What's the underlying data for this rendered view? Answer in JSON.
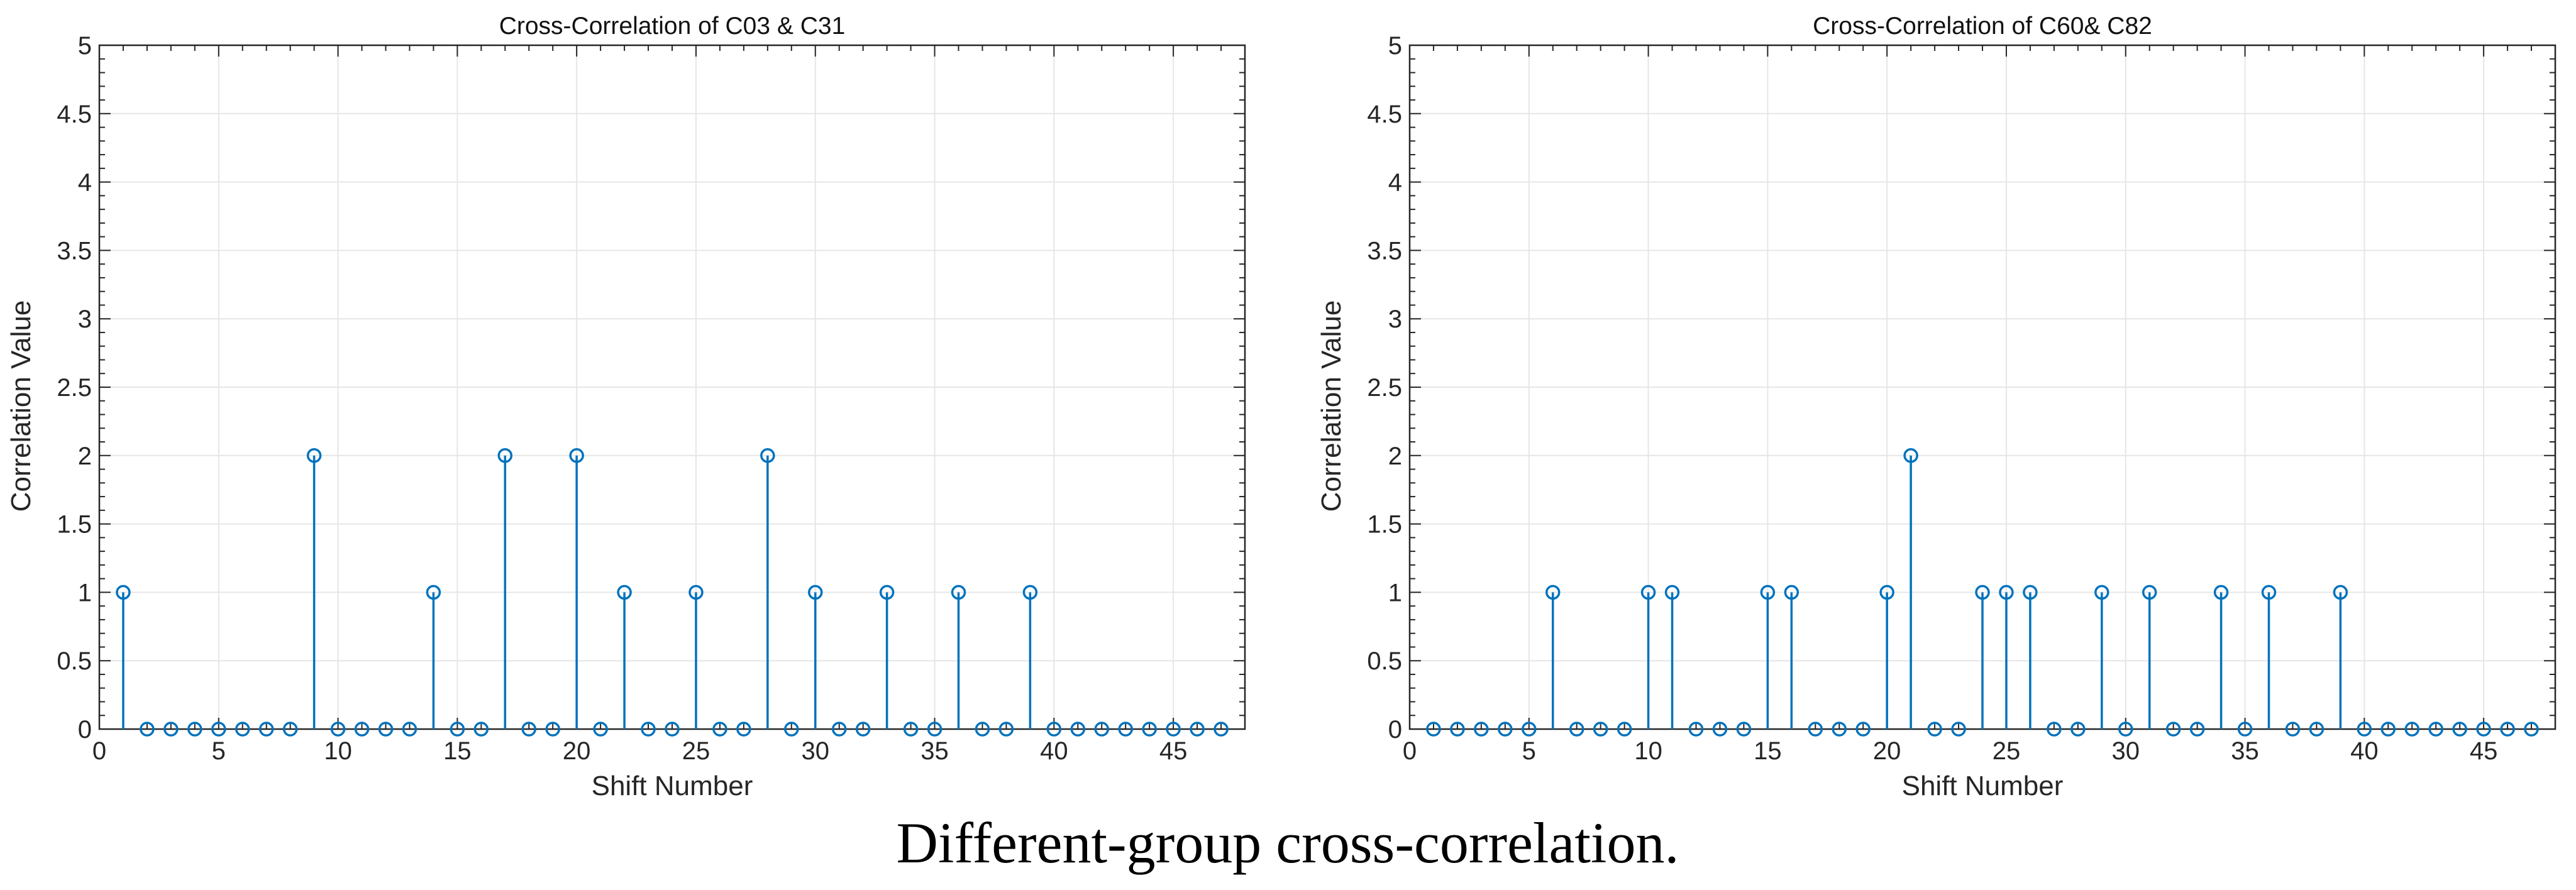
{
  "caption": "Different-group cross-correlation.",
  "colors": {
    "stem": "#0072BD",
    "grid": "#e6e6e6",
    "axis": "#262626"
  },
  "chart_data": [
    {
      "type": "stem",
      "title": "Cross-Correlation of C03 & C31",
      "xlabel": "Shift Number",
      "ylabel": "Correlation Value",
      "xlim": [
        0,
        48
      ],
      "ylim": [
        0,
        5
      ],
      "xticks": [
        0,
        5,
        10,
        15,
        20,
        25,
        30,
        35,
        40,
        45
      ],
      "xtick_labels": [
        "0",
        "5",
        "10",
        "15",
        "20",
        "25",
        "30",
        "35",
        "40",
        "45"
      ],
      "yticks": [
        0,
        0.5,
        1,
        1.5,
        2,
        2.5,
        3,
        3.5,
        4,
        4.5,
        5
      ],
      "ytick_labels": [
        "0",
        "0.5",
        "1",
        "1.5",
        "2",
        "2.5",
        "3",
        "3.5",
        "4",
        "4.5",
        "5"
      ],
      "grid": true,
      "x": [
        1,
        2,
        3,
        4,
        5,
        6,
        7,
        8,
        9,
        10,
        11,
        12,
        13,
        14,
        15,
        16,
        17,
        18,
        19,
        20,
        21,
        22,
        23,
        24,
        25,
        26,
        27,
        28,
        29,
        30,
        31,
        32,
        33,
        34,
        35,
        36,
        37,
        38,
        39,
        40,
        41,
        42,
        43,
        44,
        45,
        46,
        47
      ],
      "y": [
        1,
        0,
        0,
        0,
        0,
        0,
        0,
        0,
        2,
        0,
        0,
        0,
        0,
        1,
        0,
        0,
        2,
        0,
        0,
        2,
        0,
        1,
        0,
        0,
        1,
        0,
        0,
        2,
        0,
        1,
        0,
        0,
        1,
        0,
        0,
        1,
        0,
        0,
        1,
        0,
        0,
        0,
        0,
        0,
        0,
        0,
        0
      ]
    },
    {
      "type": "stem",
      "title": "Cross-Correlation of C60& C82",
      "xlabel": "Shift Number",
      "ylabel": "Correlation Value",
      "xlim": [
        0,
        48
      ],
      "ylim": [
        0,
        5
      ],
      "xticks": [
        0,
        5,
        10,
        15,
        20,
        25,
        30,
        35,
        40,
        45
      ],
      "xtick_labels": [
        "0",
        "5",
        "10",
        "15",
        "20",
        "25",
        "30",
        "35",
        "40",
        "45"
      ],
      "yticks": [
        0,
        0.5,
        1,
        1.5,
        2,
        2.5,
        3,
        3.5,
        4,
        4.5,
        5
      ],
      "ytick_labels": [
        "0",
        "0.5",
        "1",
        "1.5",
        "2",
        "2.5",
        "3",
        "3.5",
        "4",
        "4.5",
        "5"
      ],
      "grid": true,
      "x": [
        1,
        2,
        3,
        4,
        5,
        6,
        7,
        8,
        9,
        10,
        11,
        12,
        13,
        14,
        15,
        16,
        17,
        18,
        19,
        20,
        21,
        22,
        23,
        24,
        25,
        26,
        27,
        28,
        29,
        30,
        31,
        32,
        33,
        34,
        35,
        36,
        37,
        38,
        39,
        40,
        41,
        42,
        43,
        44,
        45,
        46,
        47
      ],
      "y": [
        0,
        0,
        0,
        0,
        0,
        1,
        0,
        0,
        0,
        1,
        1,
        0,
        0,
        0,
        1,
        1,
        0,
        0,
        0,
        1,
        2,
        0,
        0,
        1,
        1,
        1,
        0,
        0,
        1,
        0,
        1,
        0,
        0,
        1,
        0,
        1,
        0,
        0,
        1,
        0,
        0,
        0,
        0,
        0,
        0,
        0,
        0
      ]
    }
  ]
}
